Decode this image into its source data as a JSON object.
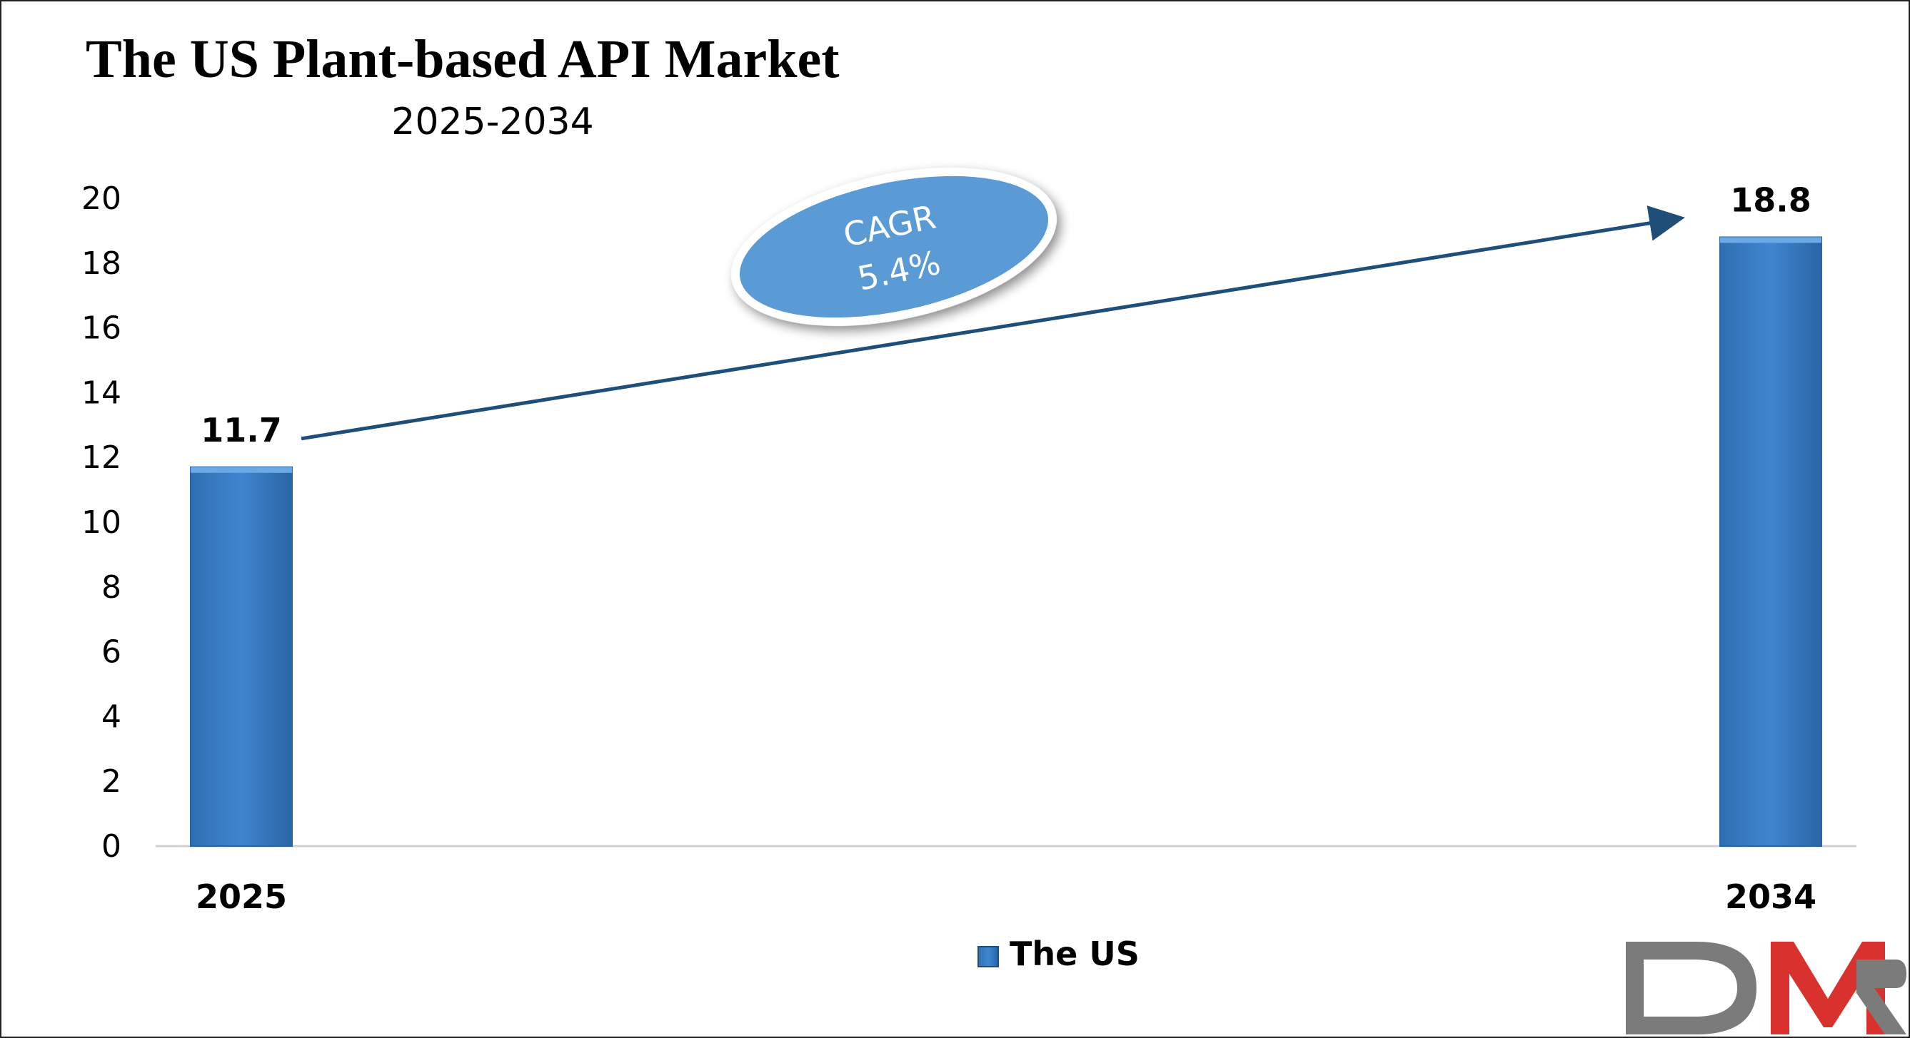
{
  "chart_data": {
    "type": "bar",
    "title": "The US Plant-based API Market",
    "subtitle": "2025-2034",
    "categories": [
      "2025",
      "2034"
    ],
    "series": [
      {
        "name": "The US",
        "values": [
          11.7,
          18.8
        ],
        "color": "#3a7ec6"
      }
    ],
    "data_labels": [
      "11.7",
      "18.8"
    ],
    "ylim": [
      0,
      20
    ],
    "yticks": [
      0,
      2,
      4,
      6,
      8,
      10,
      12,
      14,
      16,
      18,
      20
    ],
    "xlabel": "",
    "ylabel": "",
    "grid": false,
    "legend_position": "bottom-center",
    "annotation": {
      "label": "CAGR",
      "value": "5.4%",
      "fill_color": "#5b9bd5",
      "arrow_color": "#1f4e79"
    }
  },
  "logo": {
    "text": "DMR",
    "colors": {
      "d": "#7b7b7b",
      "m": "#d9322e",
      "r": "#7b7b7b"
    }
  }
}
